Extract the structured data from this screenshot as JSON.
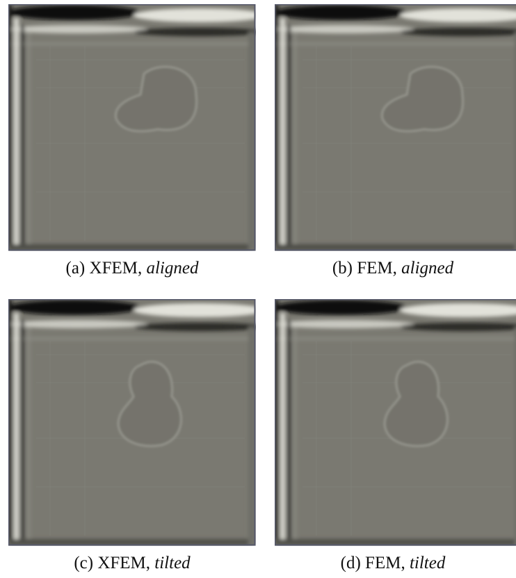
{
  "panels": [
    {
      "label": "(a)",
      "method": "XFEM,",
      "setting": "aligned"
    },
    {
      "label": "(b)",
      "method": "FEM,",
      "setting": "aligned"
    },
    {
      "label": "(c)",
      "method": "XFEM,",
      "setting": "tilted"
    },
    {
      "label": "(d)",
      "method": "FEM,",
      "setting": "tilted"
    }
  ]
}
